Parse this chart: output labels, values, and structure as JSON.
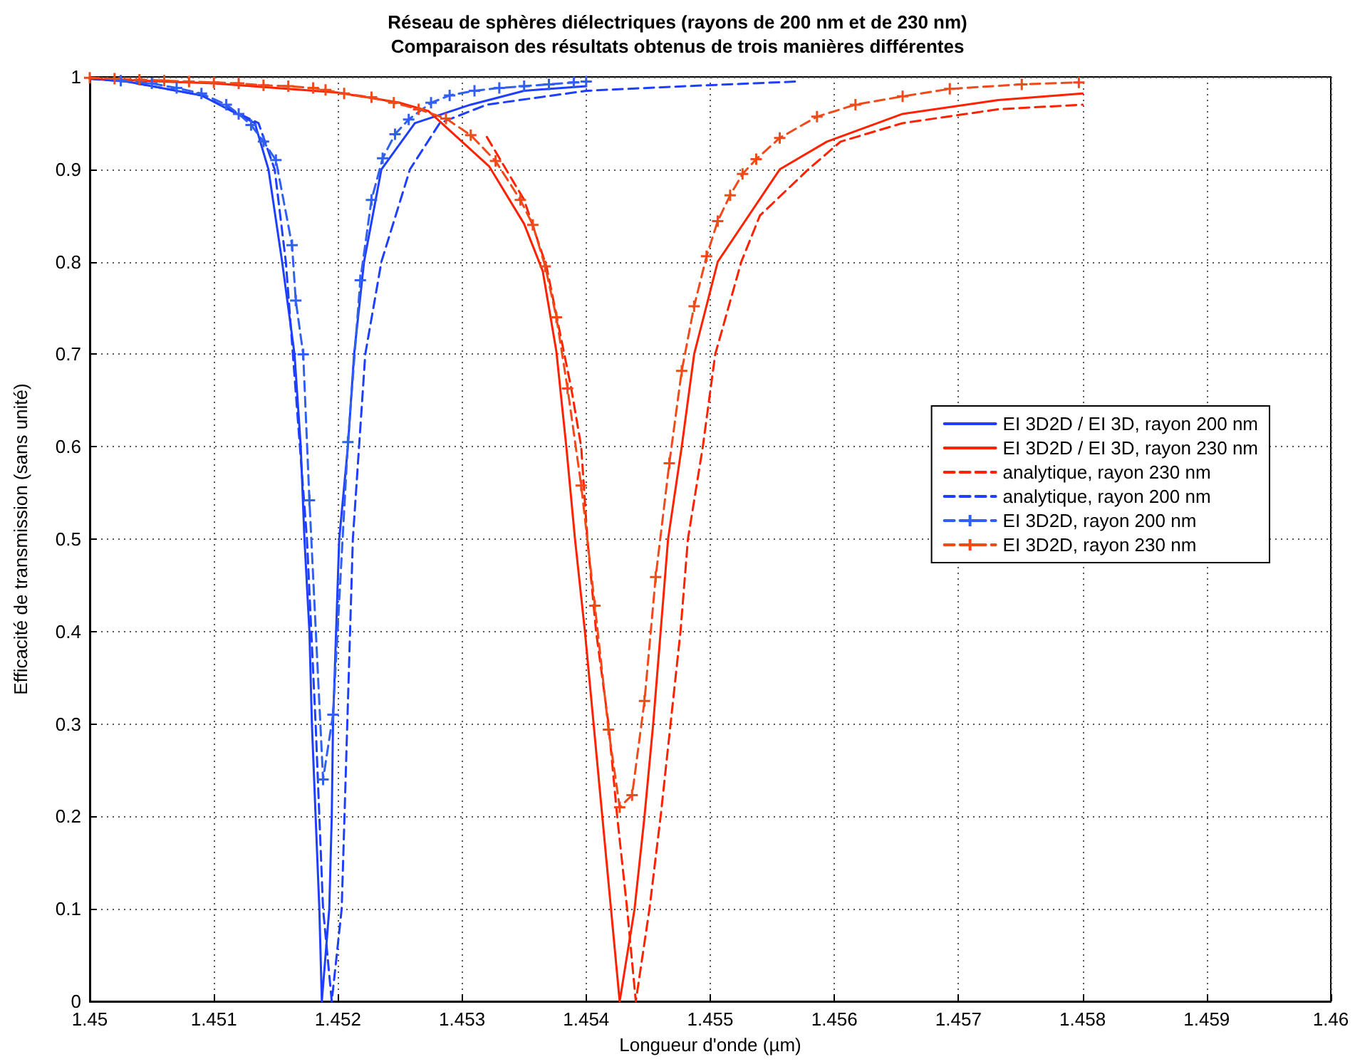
{
  "chart_data": {
    "type": "line",
    "title": "Réseau de sphères diélectriques (rayons de 200 nm et de 230 nm)",
    "subtitle": "Comparaison des résultats obtenus de trois manières différentes",
    "xlabel": "Longueur d'onde (µm)",
    "ylabel": "Efficacité de transmission (sans unité)",
    "xlim": [
      1.45,
      1.46
    ],
    "xticks": [
      1.45,
      1.451,
      1.452,
      1.453,
      1.454,
      1.455,
      1.456,
      1.457,
      1.458,
      1.459,
      1.46
    ],
    "ylim": [
      0,
      1
    ],
    "yticks": [
      0,
      0.1,
      0.2,
      0.3,
      0.4,
      0.5,
      0.6,
      0.7,
      0.8,
      0.9,
      1
    ],
    "grid": true,
    "legend": "right",
    "series": [
      {
        "name": "EI 3D2D / EI 3D, rayon 200 nm",
        "color": "#1f3fff",
        "line_style": "solid",
        "marker": "none",
        "x": [
          1.45,
          1.4503,
          1.4509,
          1.45133,
          1.45144,
          1.45155,
          1.45165,
          1.4517,
          1.45173,
          1.45177,
          1.45179,
          1.45182,
          1.45185,
          1.45187,
          1.45193,
          1.45195,
          1.45196,
          1.45201,
          1.45208,
          1.45213,
          1.45221,
          1.45235,
          1.45262,
          1.45307,
          1.4535,
          1.454
        ],
        "values": [
          0.998,
          0.995,
          0.98,
          0.95,
          0.9,
          0.8,
          0.7,
          0.6,
          0.5,
          0.4,
          0.3,
          0.2,
          0.1,
          0,
          0.1,
          0.2,
          0.3,
          0.5,
          0.6,
          0.7,
          0.8,
          0.9,
          0.95,
          0.97,
          0.985,
          0.99
        ]
      },
      {
        "name": "EI 3D2D / EI 3D, rayon 230 nm",
        "color": "#ff2200",
        "line_style": "solid",
        "marker": "none",
        "x": [
          1.45,
          1.451,
          1.452,
          1.4525,
          1.45273,
          1.45322,
          1.4535,
          1.45365,
          1.45376,
          1.45384,
          1.45391,
          1.45399,
          1.45406,
          1.45413,
          1.4542,
          1.45427,
          1.45439,
          1.45447,
          1.45454,
          1.4546,
          1.45466,
          1.45477,
          1.45487,
          1.45506,
          1.45556,
          1.45594,
          1.45655,
          1.45732,
          1.458
        ],
        "values": [
          0.998,
          0.993,
          0.983,
          0.972,
          0.963,
          0.903,
          0.841,
          0.79,
          0.703,
          0.6,
          0.5,
          0.4,
          0.3,
          0.2,
          0.1,
          0,
          0.1,
          0.2,
          0.3,
          0.4,
          0.5,
          0.6,
          0.7,
          0.8,
          0.9,
          0.93,
          0.96,
          0.975,
          0.982
        ]
      },
      {
        "name": "analytique, rayon 230 nm",
        "color": "#ff2200",
        "line_style": "dashed",
        "marker": "none",
        "x": [
          1.4532,
          1.4535,
          1.45368,
          1.45388,
          1.45396,
          1.45401,
          1.45408,
          1.45418,
          1.45425,
          1.45433,
          1.4544,
          1.45451,
          1.4546,
          1.45468,
          1.45476,
          1.45482,
          1.45494,
          1.45504,
          1.45525,
          1.4554,
          1.45579,
          1.45605,
          1.45655,
          1.45732,
          1.458
        ],
        "values": [
          0.935,
          0.867,
          0.795,
          0.663,
          0.6,
          0.5,
          0.4,
          0.3,
          0.2,
          0.1,
          0,
          0.1,
          0.2,
          0.3,
          0.4,
          0.5,
          0.6,
          0.7,
          0.8,
          0.85,
          0.9,
          0.93,
          0.95,
          0.965,
          0.97
        ]
      },
      {
        "name": "analytique, rayon 200 nm",
        "color": "#1f3fff",
        "line_style": "dashed",
        "marker": "none",
        "x": [
          1.45,
          1.4503,
          1.4509,
          1.45136,
          1.45149,
          1.45158,
          1.45175,
          1.45182,
          1.45188,
          1.45195,
          1.45203,
          1.45212,
          1.45222,
          1.45235,
          1.45258,
          1.45282,
          1.4532,
          1.454,
          1.4548,
          1.4557
        ],
        "values": [
          0.998,
          0.995,
          0.98,
          0.95,
          0.9,
          0.8,
          0.5,
          0.3,
          0.1,
          0,
          0.1,
          0.5,
          0.7,
          0.8,
          0.9,
          0.95,
          0.97,
          0.985,
          0.99,
          0.995
        ]
      },
      {
        "name": "EI 3D2D, rayon 200 nm",
        "color": "#3060f0",
        "line_style": "dashed",
        "marker": "cross",
        "x": [
          1.45025,
          1.4505,
          1.4507,
          1.4509,
          1.4511,
          1.4512,
          1.4513,
          1.4514,
          1.4515,
          1.45163,
          1.45166,
          1.45172,
          1.45177,
          1.45188,
          1.45196,
          1.45208,
          1.45218,
          1.45227,
          1.45236,
          1.45246,
          1.45257,
          1.45275,
          1.4529,
          1.4531,
          1.4533,
          1.4535,
          1.4537,
          1.4539,
          1.454
        ],
        "values": [
          0.996,
          0.993,
          0.988,
          0.982,
          0.97,
          0.96,
          0.948,
          0.93,
          0.91,
          0.818,
          0.758,
          0.7,
          0.542,
          0.24,
          0.31,
          0.605,
          0.78,
          0.867,
          0.912,
          0.938,
          0.954,
          0.972,
          0.98,
          0.985,
          0.988,
          0.99,
          0.992,
          0.994,
          0.995
        ]
      },
      {
        "name": "EI 3D2D, rayon 230 nm",
        "color": "#f04a1a",
        "line_style": "dashed",
        "marker": "cross",
        "x": [
          1.45,
          1.4502,
          1.4504,
          1.4506,
          1.4508,
          1.451,
          1.4512,
          1.4514,
          1.4516,
          1.4518,
          1.4519,
          1.45205,
          1.45227,
          1.45245,
          1.45265,
          1.45287,
          1.45307,
          1.45327,
          1.45347,
          1.45357,
          1.45367,
          1.45376,
          1.45385,
          1.45396,
          1.45407,
          1.45418,
          1.45427,
          1.45437,
          1.45447,
          1.45456,
          1.45467,
          1.45477,
          1.45487,
          1.45497,
          1.45506,
          1.45516,
          1.45526,
          1.45537,
          1.45556,
          1.45586,
          1.45617,
          1.45655,
          1.45693,
          1.45751,
          1.45797
        ],
        "values": [
          0.999,
          0.998,
          0.997,
          0.996,
          0.995,
          0.994,
          0.993,
          0.991,
          0.99,
          0.988,
          0.986,
          0.982,
          0.978,
          0.972,
          0.965,
          0.955,
          0.937,
          0.909,
          0.867,
          0.84,
          0.795,
          0.74,
          0.663,
          0.558,
          0.428,
          0.294,
          0.21,
          0.223,
          0.325,
          0.459,
          0.582,
          0.682,
          0.752,
          0.806,
          0.844,
          0.872,
          0.895,
          0.911,
          0.934,
          0.957,
          0.97,
          0.979,
          0.987,
          0.992,
          0.994
        ]
      }
    ]
  }
}
